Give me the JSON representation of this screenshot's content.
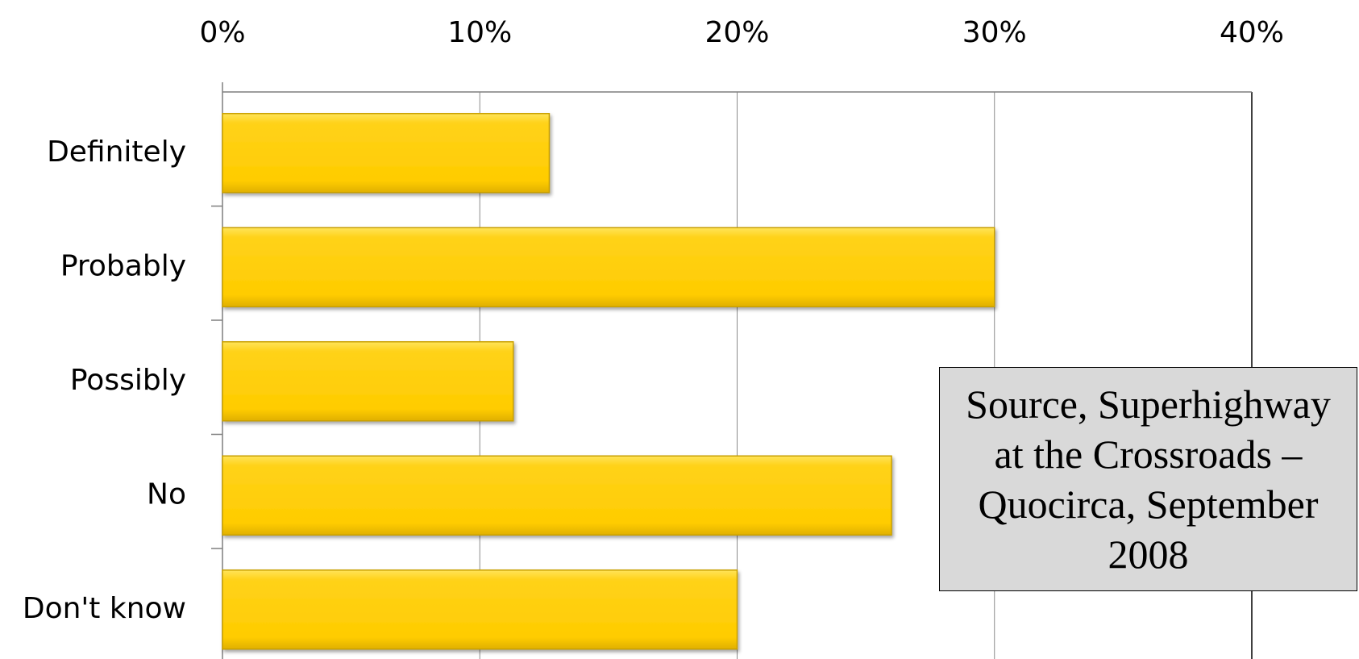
{
  "chart_data": {
    "type": "bar",
    "orientation": "horizontal",
    "categories": [
      "Definitely",
      "Probably",
      "Possibly",
      "No",
      "Don't know"
    ],
    "values": [
      12.7,
      30,
      11.3,
      26,
      20
    ],
    "unit": "%",
    "xlim": [
      0,
      40
    ],
    "xticks": [
      0,
      10,
      20,
      30,
      40
    ],
    "xtick_labels": [
      "0%",
      "10%",
      "20%",
      "30%",
      "40%"
    ],
    "x_axis_position": "top",
    "grid": true,
    "legend": "none",
    "bar_color": "#ffcc00",
    "bar_edge_color": "#c9a000",
    "annotation": "Source, Superhighway at the Crossroads – Quocirca, September 2008",
    "title": "",
    "xlabel": "",
    "ylabel": ""
  }
}
